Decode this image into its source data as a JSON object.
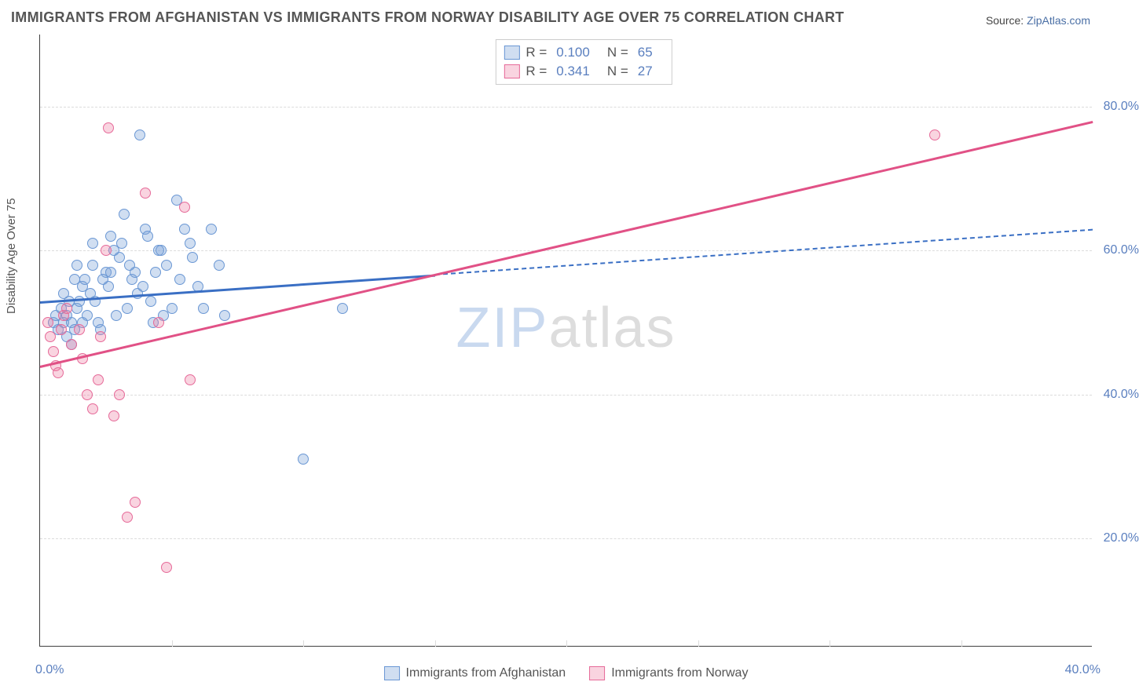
{
  "title": "IMMIGRANTS FROM AFGHANISTAN VS IMMIGRANTS FROM NORWAY DISABILITY AGE OVER 75 CORRELATION CHART",
  "source_prefix": "Source: ",
  "source_link": "ZipAtlas.com",
  "ylabel": "Disability Age Over 75",
  "watermark_zip": "ZIP",
  "watermark_atlas": "atlas",
  "chart": {
    "type": "scatter",
    "background_color": "#ffffff",
    "grid_color": "#dcdcdc",
    "axis_color": "#404040",
    "xlim": [
      0,
      40
    ],
    "ylim": [
      5,
      90
    ],
    "yticks": [
      20,
      40,
      60,
      80
    ],
    "ytick_labels": [
      "20.0%",
      "40.0%",
      "60.0%",
      "80.0%"
    ],
    "xticks_minor": [
      0,
      5,
      10,
      15,
      20,
      25,
      30,
      35,
      40
    ],
    "xtick_labels": {
      "0": "0.0%",
      "40": "40.0%"
    },
    "point_radius": 7,
    "point_stroke_width": 1.2,
    "trend_width_solid": 3,
    "trend_width_dash": 2,
    "series": [
      {
        "name": "Immigrants from Afghanistan",
        "color_fill": "rgba(120,160,215,0.35)",
        "color_stroke": "#6a97d4",
        "R": "0.100",
        "N": "65",
        "trend": {
          "x1": 0,
          "y1": 53,
          "x2": 40,
          "y2": 63,
          "solid_until_x": 15,
          "dash": "7 5",
          "color": "#3a6fc4"
        },
        "points": [
          [
            0.5,
            50
          ],
          [
            0.6,
            51
          ],
          [
            0.7,
            49
          ],
          [
            0.8,
            52
          ],
          [
            0.9,
            50
          ],
          [
            1.0,
            51
          ],
          [
            1.1,
            53
          ],
          [
            1.2,
            50
          ],
          [
            1.3,
            49
          ],
          [
            1.4,
            52
          ],
          [
            1.6,
            55
          ],
          [
            1.8,
            51
          ],
          [
            2.0,
            58
          ],
          [
            2.2,
            50
          ],
          [
            2.5,
            57
          ],
          [
            2.7,
            62
          ],
          [
            3.0,
            59
          ],
          [
            3.2,
            65
          ],
          [
            3.5,
            56
          ],
          [
            3.8,
            76
          ],
          [
            4.0,
            63
          ],
          [
            4.2,
            53
          ],
          [
            4.5,
            60
          ],
          [
            5.0,
            52
          ],
          [
            5.2,
            67
          ],
          [
            5.5,
            63
          ],
          [
            5.8,
            59
          ],
          [
            6.0,
            55
          ],
          [
            6.5,
            63
          ],
          [
            7.0,
            51
          ],
          [
            10.0,
            31
          ],
          [
            11.5,
            52
          ],
          [
            1.0,
            48
          ],
          [
            1.2,
            47
          ],
          [
            1.5,
            53
          ],
          [
            1.7,
            56
          ],
          [
            2.1,
            53
          ],
          [
            2.3,
            49
          ],
          [
            2.6,
            55
          ],
          [
            2.9,
            51
          ],
          [
            3.1,
            61
          ],
          [
            3.4,
            58
          ],
          [
            3.7,
            54
          ],
          [
            4.1,
            62
          ],
          [
            4.4,
            57
          ],
          [
            4.7,
            51
          ],
          [
            1.3,
            56
          ],
          [
            1.6,
            50
          ],
          [
            1.9,
            54
          ],
          [
            2.4,
            56
          ],
          [
            2.8,
            60
          ],
          [
            3.3,
            52
          ],
          [
            3.6,
            57
          ],
          [
            4.3,
            50
          ],
          [
            4.8,
            58
          ],
          [
            5.3,
            56
          ],
          [
            5.7,
            61
          ],
          [
            6.2,
            52
          ],
          [
            6.8,
            58
          ],
          [
            0.9,
            54
          ],
          [
            1.4,
            58
          ],
          [
            2.0,
            61
          ],
          [
            2.7,
            57
          ],
          [
            3.9,
            55
          ],
          [
            4.6,
            60
          ]
        ]
      },
      {
        "name": "Immigrants from Norway",
        "color_fill": "rgba(235,120,160,0.32)",
        "color_stroke": "#e66a99",
        "R": "0.341",
        "N": "27",
        "trend": {
          "x1": 0,
          "y1": 44,
          "x2": 40,
          "y2": 78,
          "solid_until_x": 40,
          "dash": null,
          "color": "#e15186"
        },
        "points": [
          [
            0.3,
            50
          ],
          [
            0.4,
            48
          ],
          [
            0.5,
            46
          ],
          [
            0.6,
            44
          ],
          [
            0.7,
            43
          ],
          [
            0.8,
            49
          ],
          [
            0.9,
            51
          ],
          [
            1.0,
            52
          ],
          [
            1.5,
            49
          ],
          [
            1.8,
            40
          ],
          [
            2.0,
            38
          ],
          [
            2.3,
            48
          ],
          [
            2.6,
            77
          ],
          [
            2.8,
            37
          ],
          [
            3.0,
            40
          ],
          [
            3.3,
            23
          ],
          [
            4.0,
            68
          ],
          [
            4.5,
            50
          ],
          [
            4.8,
            16
          ],
          [
            5.5,
            66
          ],
          [
            5.7,
            42
          ],
          [
            3.6,
            25
          ],
          [
            2.5,
            60
          ],
          [
            34.0,
            76
          ],
          [
            1.2,
            47
          ],
          [
            1.6,
            45
          ],
          [
            2.2,
            42
          ]
        ]
      }
    ],
    "legend_top": [
      {
        "swatch_fill": "rgba(120,160,215,0.35)",
        "swatch_stroke": "#6a97d4",
        "R_label": "R =",
        "R": "0.100",
        "N_label": "N =",
        "N": "65"
      },
      {
        "swatch_fill": "rgba(235,120,160,0.32)",
        "swatch_stroke": "#e66a99",
        "R_label": "R =",
        "R": "0.341",
        "N_label": "N =",
        "N": "27"
      }
    ],
    "legend_bottom": [
      {
        "swatch_fill": "rgba(120,160,215,0.35)",
        "swatch_stroke": "#6a97d4",
        "label": "Immigrants from Afghanistan"
      },
      {
        "swatch_fill": "rgba(235,120,160,0.32)",
        "swatch_stroke": "#e66a99",
        "label": "Immigrants from Norway"
      }
    ]
  }
}
